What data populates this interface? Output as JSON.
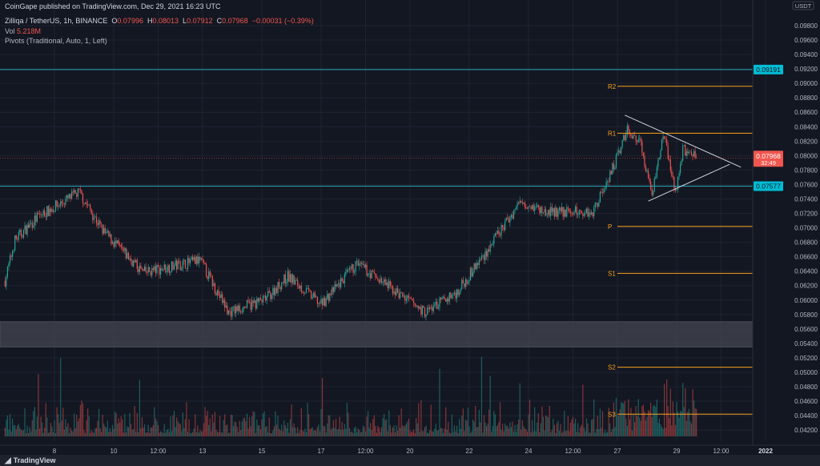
{
  "header": {
    "published": "CoinGape published on TradingView.com, Dec 29, 2021 16:23 UTC",
    "symbol": "Zilliqa / TetherUS, 1h, BINANCE",
    "o_label": "O",
    "o": "0.07996",
    "h_label": "H",
    "h": "0.08013",
    "l_label": "L",
    "l": "0.07912",
    "c_label": "C",
    "c": "0.07968",
    "change": "−0.00031 (−0.39%)",
    "vol_label": "Vol",
    "vol": "5.218M",
    "pivots": "Pivots (Traditional, Auto, 1, Left)"
  },
  "footer": {
    "logo": "TradingView"
  },
  "colors": {
    "background": "#131722",
    "up": "#26a69a",
    "down": "#ef5350",
    "pivot": "#f7a21b",
    "level": "#00bcd4",
    "last": "#f0564e",
    "triangle": "#d1d4dc"
  },
  "chart_data": {
    "type": "candlestick",
    "currency": "USDT",
    "interval": "1h",
    "ylim": [
      0.041,
      0.099
    ],
    "y_ticks": [
      "0.09800",
      "0.09600",
      "0.09400",
      "0.09200",
      "0.09000",
      "0.08800",
      "0.08600",
      "0.08400",
      "0.08200",
      "0.08000",
      "0.07800",
      "0.07600",
      "0.07400",
      "0.07200",
      "0.07000",
      "0.06800",
      "0.06600",
      "0.06400",
      "0.06200",
      "0.06000",
      "0.05800",
      "0.05600",
      "0.05400",
      "0.05200",
      "0.05000",
      "0.04800",
      "0.04600",
      "0.04400",
      "0.04200"
    ],
    "x_ticks": [
      {
        "label": "8",
        "date": "2021-12-08T00:00"
      },
      {
        "label": "10",
        "date": "2021-12-10T00:00"
      },
      {
        "label": "12:00",
        "date": "2021-12-11T12:00"
      },
      {
        "label": "13",
        "date": "2021-12-13T00:00"
      },
      {
        "label": "15",
        "date": "2021-12-15T00:00"
      },
      {
        "label": "17",
        "date": "2021-12-17T00:00"
      },
      {
        "label": "12:00",
        "date": "2021-12-18T12:00"
      },
      {
        "label": "20",
        "date": "2021-12-20T00:00"
      },
      {
        "label": "22",
        "date": "2021-12-22T00:00"
      },
      {
        "label": "24",
        "date": "2021-12-24T00:00"
      },
      {
        "label": "12:00",
        "date": "2021-12-25T12:00"
      },
      {
        "label": "27",
        "date": "2021-12-27T00:00"
      },
      {
        "label": "29",
        "date": "2021-12-29T00:00"
      },
      {
        "label": "12:00",
        "date": "2021-12-30T12:00"
      },
      {
        "label": "2022",
        "date": "2022-01-01T00:00"
      }
    ],
    "x_range": [
      "2021-12-06T07:00",
      "2022-01-01T12:00"
    ],
    "price_path": [
      {
        "date": "2021-12-06T08:00",
        "close": 0.0627
      },
      {
        "date": "2021-12-06T16:00",
        "close": 0.0683
      },
      {
        "date": "2021-12-07T11:00",
        "close": 0.0716
      },
      {
        "date": "2021-12-08T20:00",
        "close": 0.0749
      },
      {
        "date": "2021-12-09T16:00",
        "close": 0.0694
      },
      {
        "date": "2021-12-11T00:00",
        "close": 0.0638
      },
      {
        "date": "2021-12-12T22:00",
        "close": 0.0655
      },
      {
        "date": "2021-12-13T21:00",
        "close": 0.0583
      },
      {
        "date": "2021-12-15T02:00",
        "close": 0.06
      },
      {
        "date": "2021-12-15T21:00",
        "close": 0.0633
      },
      {
        "date": "2021-12-17T00:00",
        "close": 0.0594
      },
      {
        "date": "2021-12-18T05:00",
        "close": 0.065
      },
      {
        "date": "2021-12-19T04:00",
        "close": 0.0622
      },
      {
        "date": "2021-12-20T12:00",
        "close": 0.0583
      },
      {
        "date": "2021-12-21T14:00",
        "close": 0.0611
      },
      {
        "date": "2021-12-22T16:00",
        "close": 0.0672
      },
      {
        "date": "2021-12-23T18:00",
        "close": 0.0738
      },
      {
        "date": "2021-12-24T13:00",
        "close": 0.0722
      },
      {
        "date": "2021-12-26T04:00",
        "close": 0.0722
      },
      {
        "date": "2021-12-26T23:00",
        "close": 0.0794
      },
      {
        "date": "2021-12-27T08:00",
        "close": 0.0838
      },
      {
        "date": "2021-12-27T18:00",
        "close": 0.0822
      },
      {
        "date": "2021-12-28T04:00",
        "close": 0.0749
      },
      {
        "date": "2021-12-28T13:00",
        "close": 0.0833
      },
      {
        "date": "2021-12-28T23:00",
        "close": 0.0749
      },
      {
        "date": "2021-12-29T05:00",
        "close": 0.081
      },
      {
        "date": "2021-12-29T16:00",
        "close": 0.07968
      }
    ],
    "last_price": {
      "value": 0.07968,
      "label": "0.07968",
      "countdown": "32:49"
    },
    "levels": [
      {
        "value": 0.09191,
        "label": "0.09191"
      },
      {
        "value": 0.07577,
        "label": "0.07577"
      }
    ],
    "zone": {
      "low": 0.0535,
      "high": 0.057
    },
    "pivots": [
      {
        "name": "R2",
        "value": 0.0896
      },
      {
        "name": "R1",
        "value": 0.0831
      },
      {
        "name": "P",
        "value": 0.0702
      },
      {
        "name": "S1",
        "value": 0.0637
      },
      {
        "name": "S2",
        "value": 0.0507
      },
      {
        "name": "S3",
        "value": 0.0442
      }
    ],
    "pivot_start": "2021-12-27T00:00",
    "triangle": [
      [
        {
          "date": "2021-12-27T06:00",
          "price": 0.0856
        },
        {
          "date": "2021-12-31T04:00",
          "price": 0.0784
        }
      ],
      [
        {
          "date": "2021-12-28T01:00",
          "price": 0.0737
        },
        {
          "date": "2021-12-30T19:00",
          "price": 0.0788
        }
      ]
    ]
  }
}
